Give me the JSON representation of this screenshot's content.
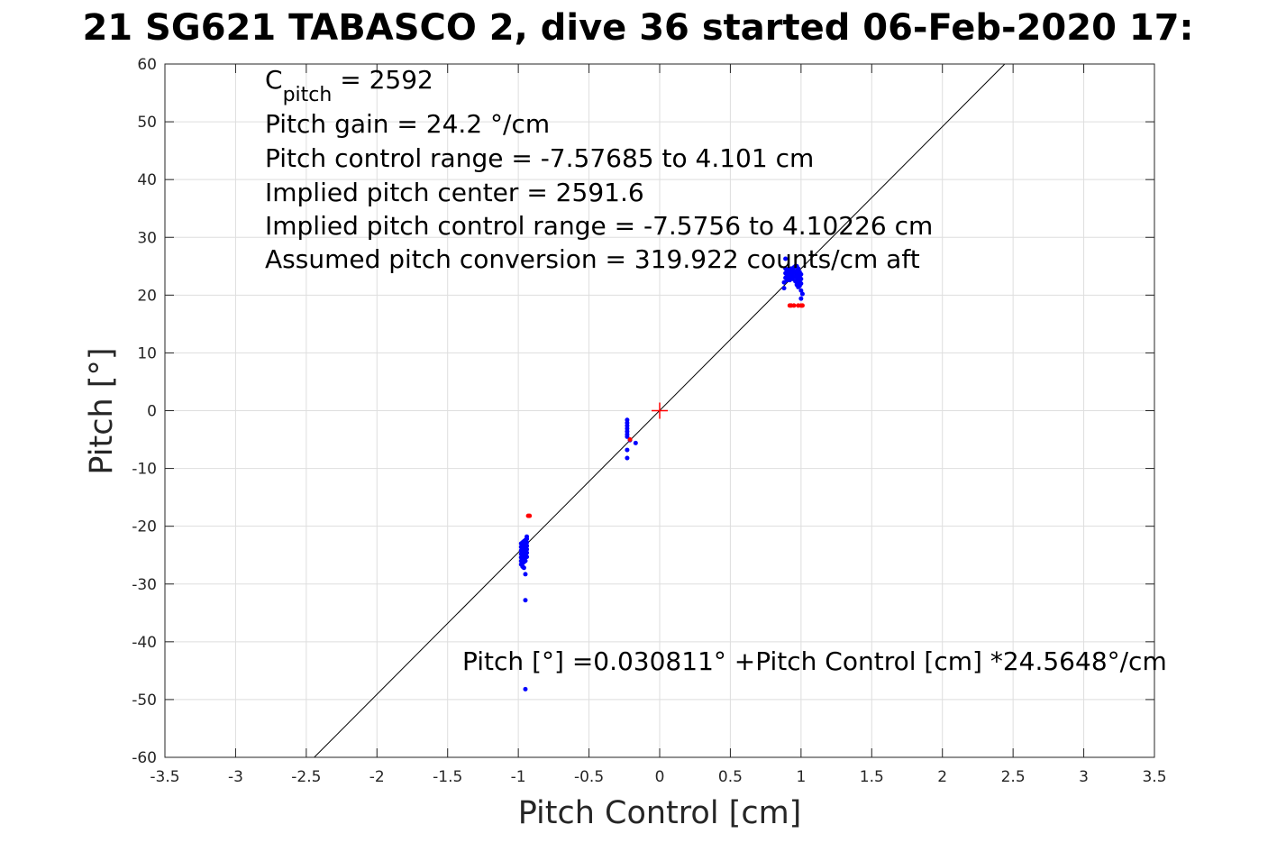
{
  "chart_data": {
    "type": "scatter",
    "title": "21 SG621 TABASCO 2, dive 36 started 06-Feb-2020 17:",
    "xlabel": "Pitch Control [cm]",
    "ylabel": "Pitch [°]",
    "xlim": [
      -3.5,
      3.5
    ],
    "ylim": [
      -60,
      60
    ],
    "xticks": [
      -3.5,
      -3,
      -2.5,
      -2,
      -1.5,
      -1,
      -0.5,
      0,
      0.5,
      1,
      1.5,
      2,
      2.5,
      3,
      3.5
    ],
    "xtick_labels": [
      "-3.5",
      "-3",
      "-2.5",
      "-2",
      "-1.5",
      "-1",
      "-0.5",
      "0",
      "0.5",
      "1",
      "1.5",
      "2",
      "2.5",
      "3",
      "3.5"
    ],
    "yticks": [
      -60,
      -50,
      -40,
      -30,
      -20,
      -10,
      0,
      10,
      20,
      30,
      40,
      50,
      60
    ],
    "ytick_labels": [
      "-60",
      "-50",
      "-40",
      "-30",
      "-20",
      "-10",
      "0",
      "10",
      "20",
      "30",
      "40",
      "50",
      "60"
    ],
    "grid": true,
    "colors": {
      "used": "#0000ff",
      "excluded": "#ff0000",
      "fit": "#000000",
      "center": "#ff0000"
    },
    "annotations": {
      "cpitch_base": "C",
      "cpitch_sub": "pitch",
      "cpitch_rest": " = 2592",
      "line2": "Pitch gain = 24.2 °/cm",
      "line3": "Pitch control range = -7.57685 to 4.101 cm",
      "line4": "Implied pitch center = 2591.6",
      "line5": "Implied pitch control range = -7.5756 to 4.10226 cm",
      "line6": "Assumed pitch conversion = 319.922 counts/cm aft",
      "fit_equation": "Pitch [°] =0.030811° +Pitch Control [cm] *24.5648°/cm"
    },
    "fit": {
      "intercept": 0.030811,
      "slope": 24.5648
    },
    "center_marker": {
      "x": 0,
      "y": 0
    },
    "series": [
      {
        "role": "used",
        "points": [
          [
            -0.98,
            -23.0
          ],
          [
            -0.98,
            -23.6
          ],
          [
            -0.98,
            -24.2
          ],
          [
            -0.98,
            -24.8
          ],
          [
            -0.98,
            -25.4
          ],
          [
            -0.98,
            -26.0
          ],
          [
            -0.98,
            -26.6
          ],
          [
            -0.97,
            -22.8
          ],
          [
            -0.97,
            -23.4
          ],
          [
            -0.97,
            -24.0
          ],
          [
            -0.97,
            -24.6
          ],
          [
            -0.97,
            -25.2
          ],
          [
            -0.97,
            -25.8
          ],
          [
            -0.97,
            -26.4
          ],
          [
            -0.97,
            -27.0
          ],
          [
            -0.96,
            -22.6
          ],
          [
            -0.96,
            -23.2
          ],
          [
            -0.96,
            -23.8
          ],
          [
            -0.96,
            -24.4
          ],
          [
            -0.96,
            -25.0
          ],
          [
            -0.96,
            -25.6
          ],
          [
            -0.96,
            -26.2
          ],
          [
            -0.96,
            -27.2
          ],
          [
            -0.95,
            -22.4
          ],
          [
            -0.95,
            -23.0
          ],
          [
            -0.95,
            -23.6
          ],
          [
            -0.95,
            -24.2
          ],
          [
            -0.95,
            -24.8
          ],
          [
            -0.95,
            -25.4
          ],
          [
            -0.95,
            -26.0
          ],
          [
            -0.95,
            -28.3
          ],
          [
            -0.94,
            -22.2
          ],
          [
            -0.94,
            -22.8
          ],
          [
            -0.94,
            -23.4
          ],
          [
            -0.94,
            -24.0
          ],
          [
            -0.94,
            -24.6
          ],
          [
            -0.94,
            -21.8
          ],
          [
            -0.94,
            -25.3
          ],
          [
            -0.95,
            -32.8
          ],
          [
            -0.95,
            -48.2
          ],
          [
            -0.23,
            -1.6
          ],
          [
            -0.23,
            -2.1
          ],
          [
            -0.23,
            -2.6
          ],
          [
            -0.23,
            -3.1
          ],
          [
            -0.23,
            -3.6
          ],
          [
            -0.23,
            -4.1
          ],
          [
            -0.23,
            -4.5
          ],
          [
            -0.23,
            -6.8
          ],
          [
            -0.23,
            -8.2
          ],
          [
            -0.21,
            -5.1
          ],
          [
            -0.17,
            -5.6
          ],
          [
            0.88,
            21.2
          ],
          [
            0.88,
            22.2
          ],
          [
            0.89,
            23.0
          ],
          [
            0.89,
            23.8
          ],
          [
            0.89,
            24.6
          ],
          [
            0.89,
            26.3
          ],
          [
            0.9,
            22.6
          ],
          [
            0.9,
            23.4
          ],
          [
            0.9,
            24.2
          ],
          [
            0.91,
            23.0
          ],
          [
            0.91,
            23.8
          ],
          [
            0.91,
            24.4
          ],
          [
            0.92,
            22.6
          ],
          [
            0.92,
            23.4
          ],
          [
            0.92,
            24.2
          ],
          [
            0.93,
            23.0
          ],
          [
            0.93,
            23.8
          ],
          [
            0.93,
            24.6
          ],
          [
            0.94,
            22.8
          ],
          [
            0.94,
            23.6
          ],
          [
            0.94,
            24.4
          ],
          [
            0.95,
            23.2
          ],
          [
            0.95,
            24.0
          ],
          [
            0.95,
            24.8
          ],
          [
            0.96,
            22.4
          ],
          [
            0.96,
            23.2
          ],
          [
            0.96,
            24.0
          ],
          [
            0.96,
            25.0
          ],
          [
            0.97,
            21.8
          ],
          [
            0.97,
            22.6
          ],
          [
            0.97,
            23.4
          ],
          [
            0.97,
            24.2
          ],
          [
            0.97,
            25.0
          ],
          [
            0.98,
            21.4
          ],
          [
            0.98,
            22.2
          ],
          [
            0.98,
            23.0
          ],
          [
            0.98,
            23.8
          ],
          [
            0.98,
            24.6
          ],
          [
            0.99,
            21.6
          ],
          [
            0.99,
            22.4
          ],
          [
            0.99,
            23.2
          ],
          [
            0.99,
            24.0
          ],
          [
            1.0,
            22.0
          ],
          [
            1.0,
            22.8
          ],
          [
            1.0,
            23.6
          ],
          [
            1.0,
            20.8
          ],
          [
            1.0,
            19.4
          ],
          [
            1.01,
            20.2
          ]
        ]
      },
      {
        "role": "excluded",
        "points": [
          [
            -0.93,
            -18.2
          ],
          [
            -0.92,
            -18.2
          ],
          [
            -0.21,
            -5.0
          ],
          [
            0.92,
            18.2
          ],
          [
            0.93,
            18.2
          ],
          [
            0.95,
            18.2
          ],
          [
            0.98,
            18.2
          ],
          [
            1.0,
            18.2
          ],
          [
            1.01,
            18.2
          ]
        ]
      }
    ]
  }
}
